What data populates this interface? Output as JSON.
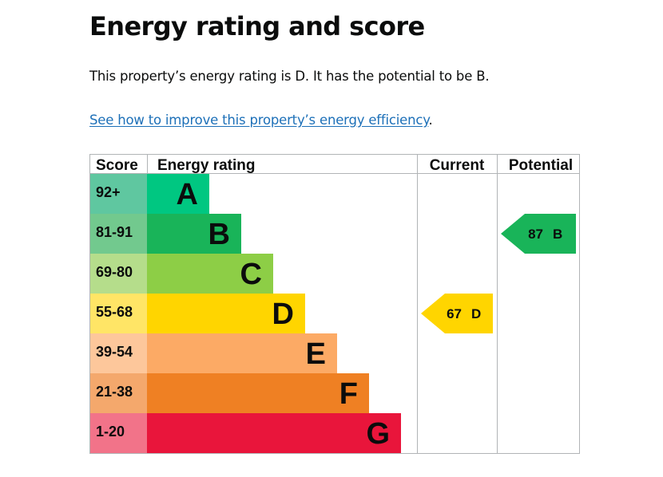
{
  "heading": "Energy rating and score",
  "summary": "This property’s energy rating is D. It has the potential to be B.",
  "improve_link": {
    "text": "See how to improve this property’s energy efficiency",
    "suffix": "."
  },
  "table": {
    "headers": {
      "score": "Score",
      "energy_rating": "Energy rating",
      "current": "Current",
      "potential": "Potential"
    },
    "bands": [
      {
        "score": "92+",
        "letter": "A",
        "color": "#00c781",
        "score_bg": "#5fc7a0"
      },
      {
        "score": "81-91",
        "letter": "B",
        "color": "#19b459",
        "score_bg": "#72c98e"
      },
      {
        "score": "69-80",
        "letter": "C",
        "color": "#8dce46",
        "score_bg": "#b5dd8b"
      },
      {
        "score": "55-68",
        "letter": "D",
        "color": "#ffd500",
        "score_bg": "#ffe566"
      },
      {
        "score": "39-54",
        "letter": "E",
        "color": "#fcaa65",
        "score_bg": "#fdc79b"
      },
      {
        "score": "21-38",
        "letter": "F",
        "color": "#ef8023",
        "score_bg": "#f4a86c"
      },
      {
        "score": "1-20",
        "letter": "G",
        "color": "#e9153b",
        "score_bg": "#f27389"
      }
    ],
    "current": {
      "score": "67",
      "letter": "D",
      "color": "#ffd500"
    },
    "potential": {
      "score": "87",
      "letter": "B",
      "color": "#19b459"
    }
  }
}
